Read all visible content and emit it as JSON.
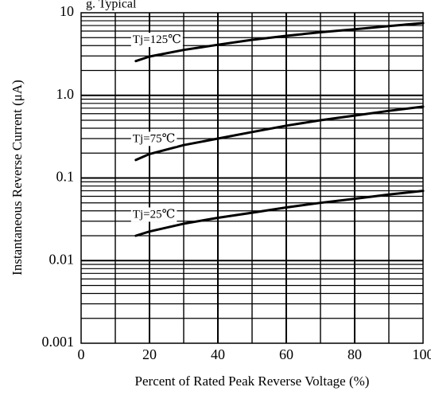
{
  "chart_data": {
    "type": "line",
    "title": "g. Typical",
    "xlabel": "Percent of Rated Peak Reverse Voltage (%)",
    "ylabel": "Instantaneous Reverse Current (μA)",
    "xlim": [
      0,
      100
    ],
    "ylim": [
      0.001,
      10
    ],
    "yscale": "log",
    "grid": true,
    "x_ticks": [
      0,
      20,
      40,
      60,
      80,
      100
    ],
    "x_tick_labels": [
      "0",
      "20",
      "40",
      "60",
      "80",
      "100"
    ],
    "y_ticks": [
      0.001,
      0.01,
      0.1,
      1,
      10
    ],
    "y_tick_labels": [
      "0.001",
      "0.01",
      "0.1",
      "1.0",
      "10"
    ],
    "series": [
      {
        "name": "Tj=125℃",
        "x": [
          16,
          20,
          30,
          40,
          50,
          60,
          70,
          80,
          90,
          100
        ],
        "y": [
          2.6,
          2.95,
          3.55,
          4.1,
          4.7,
          5.25,
          5.8,
          6.3,
          6.9,
          7.5
        ]
      },
      {
        "name": "Tj=75℃",
        "x": [
          16,
          20,
          30,
          40,
          50,
          60,
          70,
          80,
          90,
          100
        ],
        "y": [
          0.165,
          0.195,
          0.25,
          0.3,
          0.36,
          0.43,
          0.5,
          0.57,
          0.65,
          0.73
        ]
      },
      {
        "name": "Tj=25℃",
        "x": [
          16,
          20,
          30,
          40,
          50,
          60,
          70,
          80,
          90,
          100
        ],
        "y": [
          0.02,
          0.0225,
          0.028,
          0.033,
          0.038,
          0.044,
          0.05,
          0.056,
          0.063,
          0.07
        ]
      }
    ]
  }
}
